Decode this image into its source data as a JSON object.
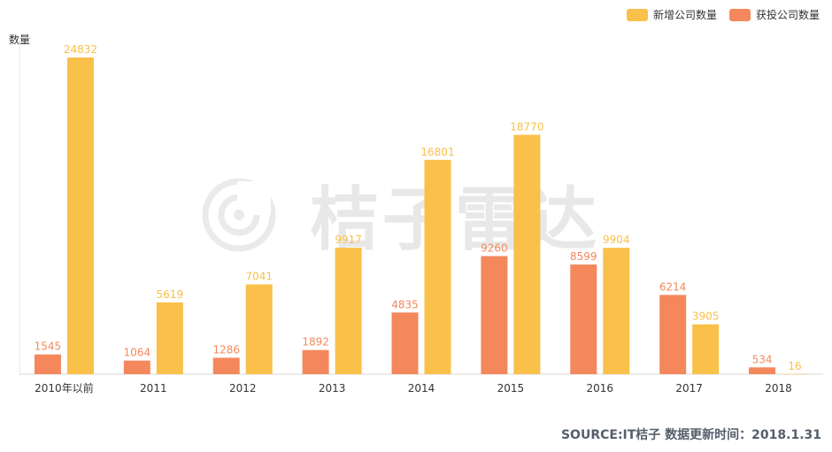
{
  "chart_data": {
    "type": "bar",
    "ylabel": "数量",
    "categories": [
      "2010年以前",
      "2011",
      "2012",
      "2013",
      "2014",
      "2015",
      "2016",
      "2017",
      "2018"
    ],
    "series": [
      {
        "name": "获投公司数量",
        "color": "#f4885c",
        "values": [
          1545,
          1064,
          1286,
          1892,
          4835,
          9260,
          8599,
          6214,
          534
        ]
      },
      {
        "name": "新增公司数量",
        "color": "#f9c04a",
        "values": [
          24832,
          5619,
          7041,
          9917,
          16801,
          18770,
          9904,
          3905,
          16
        ]
      }
    ],
    "legend_order": [
      1,
      0
    ],
    "legend_position": "top-right",
    "grid": false
  },
  "watermark": "桔子雷达",
  "source_text": "SOURCE:IT桔子 数据更新时间：2018.1.31"
}
